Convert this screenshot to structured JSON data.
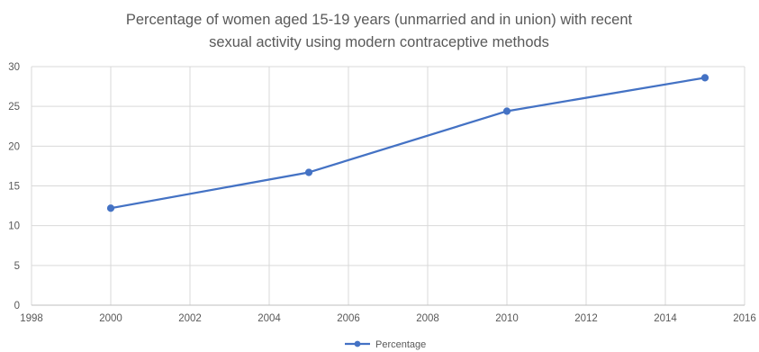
{
  "chart_data": {
    "type": "line",
    "title_lines": [
      "Percentage of women aged 15-19 years (unmarried and in union) with recent",
      "sexual activity using modern contraceptive methods"
    ],
    "xlabel": "",
    "ylabel": "",
    "xlim": [
      1998,
      2016
    ],
    "ylim": [
      0,
      30
    ],
    "x_ticks": [
      1998,
      2000,
      2002,
      2004,
      2006,
      2008,
      2010,
      2012,
      2014,
      2016
    ],
    "y_ticks": [
      0,
      5,
      10,
      15,
      20,
      25,
      30
    ],
    "grid": true,
    "legend_position": "bottom",
    "series": [
      {
        "name": "Percentage",
        "color": "#4472C4",
        "points": [
          {
            "x": 2000,
            "y": 12.2
          },
          {
            "x": 2005,
            "y": 16.7
          },
          {
            "x": 2010,
            "y": 24.4
          },
          {
            "x": 2015,
            "y": 28.6
          }
        ]
      }
    ]
  }
}
